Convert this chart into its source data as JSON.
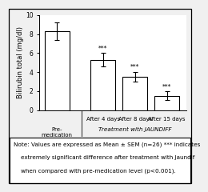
{
  "values": [
    8.3,
    5.3,
    3.5,
    1.5
  ],
  "errors": [
    0.9,
    0.7,
    0.5,
    0.45
  ],
  "bar_colors": [
    "white",
    "white",
    "white",
    "white"
  ],
  "bar_edgecolors": [
    "black",
    "black",
    "black",
    "black"
  ],
  "significance": [
    "",
    "***",
    "***",
    "***"
  ],
  "ylabel": "Bilirubin total (mg/dl)",
  "ylim": [
    0,
    10
  ],
  "yticks": [
    0,
    2,
    4,
    6,
    8,
    10
  ],
  "note_line1": "Note: Values are expressed as Mean ± SEM (n=26) *** indicates",
  "note_line2": "    extremely significant difference after treatment with Jaundif",
  "note_line3": "    when compared with pre-medication level (p<0.001).",
  "background_color": "#f0f0f0",
  "axis_fontsize": 6.0,
  "tick_fontsize": 5.5,
  "note_fontsize": 5.2
}
